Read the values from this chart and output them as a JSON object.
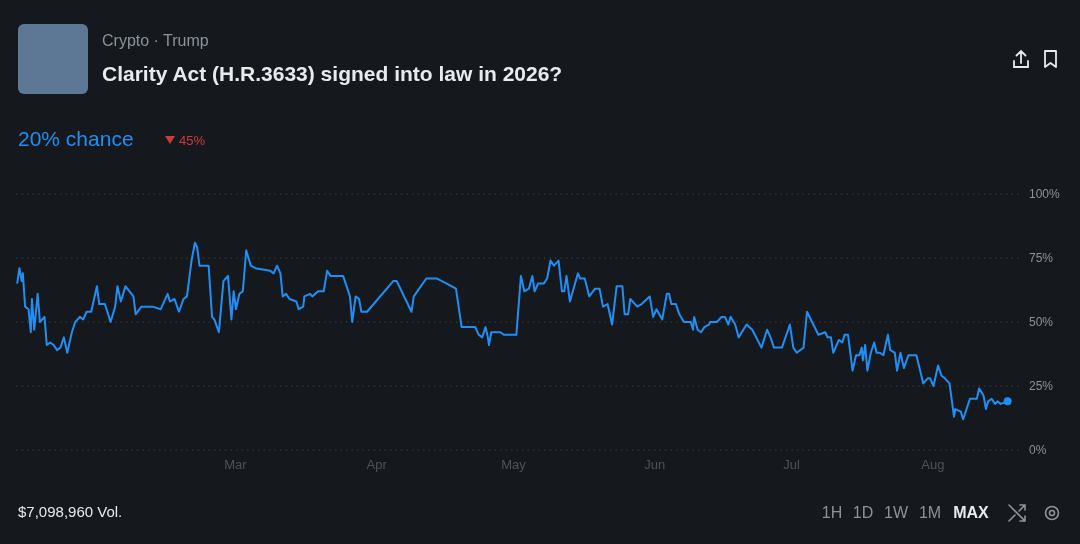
{
  "chart_data": {
    "type": "line",
    "title": "Clarity Act (H.R.3633) signed into law in 2026?",
    "subtitle": "Crypto · Trump",
    "annotations": [
      "20% chance",
      "45%",
      "$7,098,960 Vol.",
      "1H",
      "1D",
      "1W",
      "1M",
      "MAX"
    ],
    "xlim": [
      "--01-12T00:00",
      "--08-20T00:00"
    ],
    "xticks": [
      {
        "value": "--03-01T00:00",
        "label": "Mar"
      },
      {
        "value": "--04-01T00:00",
        "label": "Apr"
      },
      {
        "value": "--05-01T00:00",
        "label": "May"
      },
      {
        "value": "--06-01T00:00",
        "label": "Jun"
      },
      {
        "value": "--07-01T00:00",
        "label": "Jul"
      },
      {
        "value": "--08-01T00:00",
        "label": "Aug"
      }
    ],
    "ylim": [
      0,
      100
    ],
    "yticks": [
      {
        "value": 0,
        "label": "0%"
      },
      {
        "value": 25,
        "label": "25%"
      },
      {
        "value": 50,
        "label": "50%"
      },
      {
        "value": 75,
        "label": "75%"
      },
      {
        "value": 100,
        "label": "100%"
      }
    ],
    "grid": "y",
    "line_style": "solid",
    "series": [
      {
        "color": "#1f8ff5",
        "x": [
          "--01-12T06:00",
          "--01-12T18:00",
          "--01-13T06:00",
          "--01-13T12:00",
          "--01-14T00:00",
          "--01-14T18:00",
          "--01-15T06:00",
          "--01-15T12:00",
          "--01-16T00:00",
          "--01-16T18:00",
          "--01-17T06:00",
          "--01-18T06:00",
          "--01-18T18:00",
          "--01-19T12:00",
          "--01-20T06:00",
          "--01-21T00:00",
          "--01-21T18:00",
          "--01-22T12:00",
          "--01-23T06:00",
          "--01-24T06:00",
          "--01-25T00:00",
          "--01-26T00:00",
          "--01-26T18:00",
          "--01-27T12:00",
          "--01-28T12:00",
          "--01-29T18:00",
          "--01-30T06:00",
          "--01-31T12:00",
          "--02-01T18:00",
          "--02-02T18:00",
          "--02-03T06:00",
          "--02-04T00:00",
          "--02-05T00:00",
          "--02-06T18:00",
          "--02-07T06:00",
          "--02-08T12:00",
          "--02-09T06:00",
          "--02-11T00:00",
          "--02-12T18:00",
          "--02-14T06:00",
          "--02-14T18:00",
          "--02-15T18:00",
          "--02-16T18:00",
          "--02-17T18:00",
          "--02-18T12:00",
          "--02-19T12:00",
          "--02-20T06:00",
          "--02-20T18:00",
          "--02-21T06:00",
          "--02-23T06:00",
          "--02-24T00:00",
          "--02-24T12:00",
          "--02-25T12:00",
          "--02-26T12:00",
          "--02-27T12:00",
          "--02-28T06:00",
          "--02-28T18:00",
          "--03-01T06:00",
          "--03-02T00:00",
          "--03-02T18:00",
          "--03-03T12:00",
          "--03-04T12:00",
          "--03-05T12:00",
          "--03-08T18:00",
          "--03-09T12:00",
          "--03-10T06:00",
          "--03-11T00:00",
          "--03-11T12:00",
          "--03-12T06:00",
          "--03-13T00:00",
          "--03-14T12:00",
          "--03-15T00:00",
          "--03-16T00:00",
          "--03-16T06:00",
          "--03-17T12:00",
          "--03-18T00:00",
          "--03-19T06:00",
          "--03-20T12:00",
          "--03-21T06:00",
          "--03-22T00:00",
          "--03-24T18:00",
          "--03-26T06:00",
          "--03-26T18:00",
          "--03-27T12:00",
          "--03-28T06:00",
          "--03-28T18:00",
          "--03-30T00:00",
          "--04-04T18:00",
          "--04-05T12:00",
          "--04-08T18:00",
          "--04-09T06:00",
          "--04-12T00:00",
          "--04-14T06:00",
          "--04-16T12:00",
          "--04-18T12:00",
          "--04-19T18:00",
          "--04-22T18:00",
          "--04-23T12:00",
          "--04-24T06:00",
          "--04-25T00:00",
          "--04-25T12:00",
          "--04-25T18:00",
          "--04-26T06:00",
          "--04-27T12:00",
          "--04-28T06:00",
          "--04-29T00:00",
          "--05-01T18:00",
          "--05-02T18:00",
          "--05-03T12:00",
          "--05-04T12:00",
          "--05-05T06:00",
          "--05-05T18:00",
          "--05-06T12:00",
          "--05-07T18:00",
          "--05-08T12:00",
          "--05-09T06:00",
          "--05-10T00:00",
          "--05-11T00:00",
          "--05-11T18:00",
          "--05-12T06:00",
          "--05-12T18:00",
          "--05-13T12:00",
          "--05-15T06:00",
          "--05-15T18:00",
          "--05-16T18:00",
          "--05-17T18:00",
          "--05-19T00:00",
          "--05-20T00:00",
          "--05-20T18:00",
          "--05-21T18:00",
          "--05-22T18:00",
          "--05-23T18:00",
          "--05-25T00:00",
          "--05-25T12:00",
          "--05-26T06:00",
          "--05-26T18:00",
          "--05-28T06:00",
          "--05-29T06:00",
          "--05-31T00:00",
          "--05-31T18:00",
          "--06-01T12:00",
          "--06-02T18:00",
          "--06-03T18:00",
          "--06-04T06:00",
          "--06-04T18:00",
          "--06-05T18:00",
          "--06-06T12:00",
          "--06-07T12:00",
          "--06-09T00:00",
          "--06-09T12:00",
          "--06-09T18:00",
          "--06-10T12:00",
          "--06-11T06:00",
          "--06-12T00:00",
          "--06-13T00:00",
          "--06-13T06:00",
          "--06-14T18:00",
          "--06-15T18:00",
          "--06-16T12:00",
          "--06-17T06:00",
          "--06-17T18:00",
          "--06-18T18:00",
          "--06-19T12:00",
          "--06-21T06:00",
          "--06-22T12:00",
          "--06-24T12:00",
          "--06-25T18:00",
          "--06-26T12:00",
          "--06-27T06:00",
          "--06-29T00:00",
          "--06-30T18:00",
          "--07-01T12:00",
          "--07-02T06:00",
          "--07-03T18:00",
          "--07-04T12:00",
          "--07-07T00:00",
          "--07-08T12:00",
          "--07-09T00:00",
          "--07-09T18:00",
          "--07-10T06:00",
          "--07-11T12:00",
          "--07-12T06:00",
          "--07-12T18:00",
          "--07-13T12:00",
          "--07-14T12:00",
          "--07-15T06:00",
          "--07-16T00:00",
          "--07-16T12:00",
          "--07-16T18:00",
          "--07-17T06:00",
          "--07-17T18:00",
          "--07-18T12:00",
          "--07-19T06:00",
          "--07-19T18:00",
          "--07-20T12:00",
          "--07-21T06:00",
          "--07-22T06:00",
          "--07-22T18:00",
          "--07-23T18:00",
          "--07-24T06:00",
          "--07-25T00:00",
          "--07-25T18:00",
          "--07-26T18:00",
          "--07-28T12:00",
          "--07-30T00:00",
          "--07-31T00:00",
          "--07-31T12:00",
          "--08-01T06:00",
          "--08-02T06:00",
          "--08-03T00:00",
          "--08-03T18:00",
          "--08-04T18:00",
          "--08-05T18:00",
          "--08-06T00:00",
          "--08-07T06:00",
          "--08-07T18:00",
          "--08-08T12:00",
          "--08-09T06:00",
          "--08-10T18:00",
          "--08-11T06:00",
          "--08-12T00:00",
          "--08-12T06:00",
          "--08-12T18:00",
          "--08-13T06:00",
          "--08-14T00:00",
          "--08-14T18:00",
          "--08-15T06:00",
          "--08-16T00:00",
          "--08-17T12:00"
        ],
        "values": [
          65,
          71,
          66,
          69,
          56,
          55,
          46,
          59,
          47,
          61,
          50,
          52,
          41,
          42,
          41,
          39,
          40,
          44,
          38,
          46,
          50,
          52,
          51,
          54,
          54,
          64,
          57,
          57,
          50,
          56,
          64,
          58,
          64,
          60,
          53,
          56,
          56,
          56,
          55,
          61,
          58,
          59,
          54,
          59,
          60,
          74,
          81,
          79,
          72,
          72,
          52,
          51,
          46,
          66,
          68,
          51,
          62,
          55,
          61,
          62,
          78,
          72,
          71,
          70,
          69,
          72,
          69,
          60,
          61,
          59,
          58,
          55,
          56,
          60,
          61,
          60,
          62,
          62,
          70,
          68,
          68,
          60,
          50,
          60,
          59,
          54,
          54,
          66,
          66,
          54,
          60,
          67,
          67,
          65,
          63,
          48,
          48,
          45,
          44,
          48,
          44,
          41,
          46,
          46,
          46,
          45,
          45,
          68,
          62,
          63,
          68,
          62,
          65,
          65,
          67,
          74,
          72,
          74,
          62,
          62,
          68,
          58,
          69,
          67,
          67,
          60,
          63,
          63,
          56,
          57,
          49,
          64,
          64,
          53,
          53,
          59,
          56,
          57,
          60,
          52,
          55,
          51,
          61,
          61,
          57,
          57,
          53,
          50,
          50,
          47,
          52,
          47,
          46,
          48,
          49,
          50,
          50,
          52,
          52,
          49,
          52,
          49,
          44,
          49,
          47,
          40,
          47,
          44,
          40,
          40,
          49,
          40,
          38,
          40,
          54,
          45,
          46,
          44,
          44,
          38,
          43,
          42,
          45,
          45,
          31,
          37,
          37,
          40,
          35,
          41,
          31,
          38,
          42,
          38,
          38,
          37,
          45,
          39,
          38,
          31,
          38,
          32,
          37,
          37,
          26,
          28,
          28,
          25,
          33,
          29,
          28,
          26,
          13,
          16,
          15,
          12,
          16,
          20,
          20,
          24,
          22,
          21,
          16,
          19,
          20,
          18,
          19,
          18,
          19
        ]
      },
      {
        "type": "scatter",
        "color": "#1f8ff5",
        "marker": "circle",
        "x": [
          "--08-17T12:00"
        ],
        "values": [
          19
        ]
      }
    ]
  }
}
